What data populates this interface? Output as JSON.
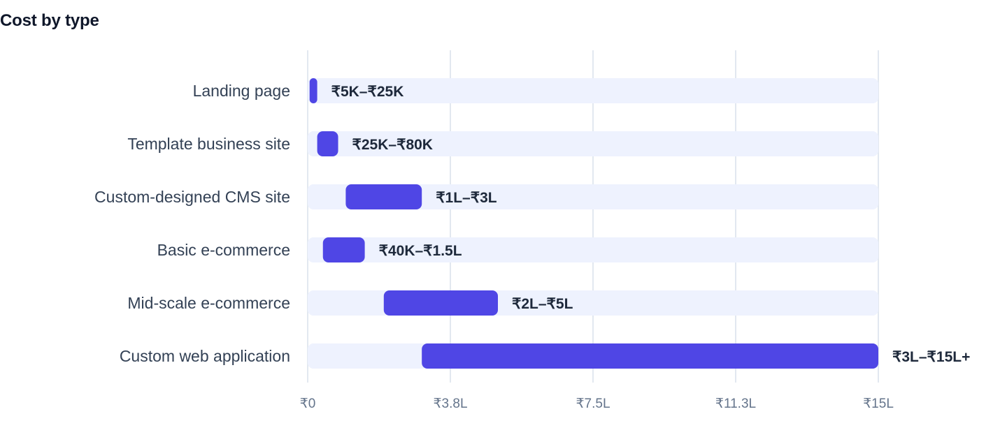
{
  "chart_data": {
    "type": "bar",
    "orientation": "horizontal",
    "style": "floating-range",
    "title": "Cost by type",
    "xlabel": "",
    "ylabel": "",
    "xlim": [
      0,
      15
    ],
    "unit": "lakh INR",
    "grid": true,
    "legend": "none",
    "ticks": [
      {
        "value": 0,
        "label": "₹0"
      },
      {
        "value": 3.75,
        "label": "₹3.8L"
      },
      {
        "value": 7.5,
        "label": "₹7.5L"
      },
      {
        "value": 11.25,
        "label": "₹11.3L"
      },
      {
        "value": 15,
        "label": "₹15L"
      }
    ],
    "categories": [
      "Landing page",
      "Template business site",
      "Custom-designed CMS site",
      "Basic e-commerce",
      "Mid-scale e-commerce",
      "Custom web application"
    ],
    "ranges": [
      {
        "low": 0.05,
        "high": 0.25,
        "label": "₹5K–₹25K"
      },
      {
        "low": 0.25,
        "high": 0.8,
        "label": "₹25K–₹80K"
      },
      {
        "low": 1,
        "high": 3,
        "label": "₹1L–₹3L"
      },
      {
        "low": 0.4,
        "high": 1.5,
        "label": "₹40K–₹1.5L"
      },
      {
        "low": 2,
        "high": 5,
        "label": "₹2L–₹5L"
      },
      {
        "low": 3,
        "high": 15,
        "label": "₹3L–₹15L+"
      }
    ]
  },
  "colors": {
    "bar": "#4f46e5",
    "track": "#eef2fe",
    "grid": "#e2e8f0",
    "title": "#0f172a",
    "category_text": "#334155",
    "tick_text": "#64748b",
    "data_label_text": "#1e293b"
  }
}
